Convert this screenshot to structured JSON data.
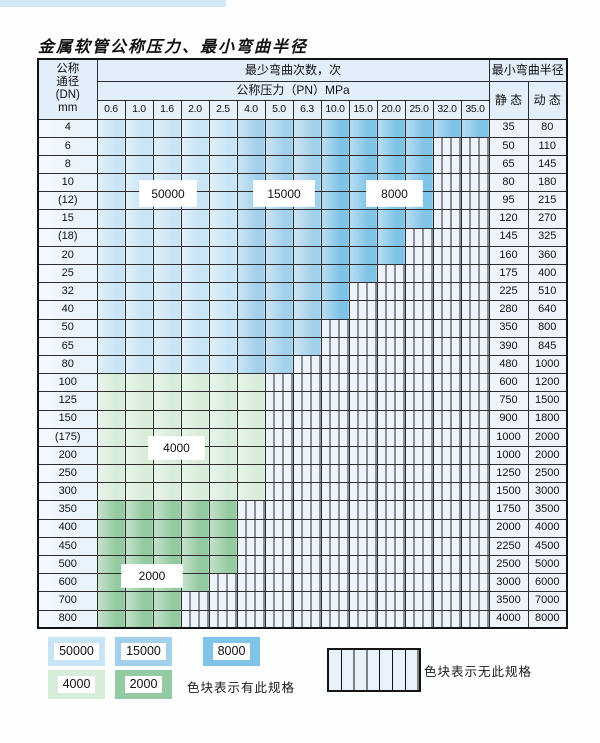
{
  "page": {
    "title": "金属软管公称压力、最小弯曲半径"
  },
  "table": {
    "header": {
      "dn_lines": [
        "公称",
        "通径",
        "(DN)",
        "mm"
      ],
      "bend_cycles": "最少弯曲次数，次",
      "pressure": "公称压力（PN）MPa",
      "min_bend_radius": "最小弯曲半径",
      "static": "静 态",
      "dynamic": "动 态",
      "pressures": [
        "0.6",
        "1.0",
        "1.6",
        "2.0",
        "2.5",
        "4.0",
        "5.0",
        "6.3",
        "10.0",
        "15.0",
        "20.0",
        "25.0",
        "32.0",
        "35.0"
      ]
    },
    "zones": {
      "blue_by_column": {
        "50000": [
          "0.6",
          "1.0",
          "1.6",
          "2.0",
          "2.5"
        ],
        "15000": [
          "4.0",
          "5.0",
          "6.3"
        ],
        "8000": [
          "10.0",
          "15.0",
          "20.0",
          "25.0",
          "32.0",
          "35.0"
        ]
      },
      "colors": {
        "50000": "#c9e4f4",
        "15000": "#a3d1ec",
        "8000": "#7fc3e7",
        "4000": "#d8ecda",
        "2000": "#94caa2"
      }
    },
    "rows": [
      {
        "dn": "4",
        "region": "blue",
        "colored_until": "35.0",
        "static": "35",
        "dynamic": "80"
      },
      {
        "dn": "6",
        "region": "blue",
        "colored_until": "25.0",
        "static": "50",
        "dynamic": "110"
      },
      {
        "dn": "8",
        "region": "blue",
        "colored_until": "25.0",
        "static": "65",
        "dynamic": "145"
      },
      {
        "dn": "10",
        "region": "blue",
        "colored_until": "25.0",
        "static": "80",
        "dynamic": "180"
      },
      {
        "dn": "(12)",
        "region": "blue",
        "colored_until": "25.0",
        "static": "95",
        "dynamic": "215"
      },
      {
        "dn": "15",
        "region": "blue",
        "colored_until": "25.0",
        "static": "120",
        "dynamic": "270"
      },
      {
        "dn": "(18)",
        "region": "blue",
        "colored_until": "20.0",
        "static": "145",
        "dynamic": "325"
      },
      {
        "dn": "20",
        "region": "blue",
        "colored_until": "20.0",
        "static": "160",
        "dynamic": "360"
      },
      {
        "dn": "25",
        "region": "blue",
        "colored_until": "15.0",
        "static": "175",
        "dynamic": "400"
      },
      {
        "dn": "32",
        "region": "blue",
        "colored_until": "10.0",
        "static": "225",
        "dynamic": "510"
      },
      {
        "dn": "40",
        "region": "blue",
        "colored_until": "10.0",
        "static": "280",
        "dynamic": "640"
      },
      {
        "dn": "50",
        "region": "blue",
        "colored_until": "6.3",
        "static": "350",
        "dynamic": "800"
      },
      {
        "dn": "65",
        "region": "blue",
        "colored_until": "6.3",
        "static": "390",
        "dynamic": "845"
      },
      {
        "dn": "80",
        "region": "blue",
        "colored_until": "5.0",
        "static": "480",
        "dynamic": "1000"
      },
      {
        "dn": "100",
        "region": "4000",
        "colored_until": "4.0",
        "static": "600",
        "dynamic": "1200"
      },
      {
        "dn": "125",
        "region": "4000",
        "colored_until": "4.0",
        "static": "750",
        "dynamic": "1500"
      },
      {
        "dn": "150",
        "region": "4000",
        "colored_until": "4.0",
        "static": "900",
        "dynamic": "1800"
      },
      {
        "dn": "(175)",
        "region": "4000",
        "colored_until": "4.0",
        "static": "1000",
        "dynamic": "2000"
      },
      {
        "dn": "200",
        "region": "4000",
        "colored_until": "4.0",
        "static": "1000",
        "dynamic": "2000"
      },
      {
        "dn": "250",
        "region": "4000",
        "colored_until": "4.0",
        "static": "1250",
        "dynamic": "2500"
      },
      {
        "dn": "300",
        "region": "4000",
        "colored_until": "4.0",
        "static": "1500",
        "dynamic": "3000"
      },
      {
        "dn": "350",
        "region": "2000",
        "colored_until": "2.5",
        "static": "1750",
        "dynamic": "3500"
      },
      {
        "dn": "400",
        "region": "2000",
        "colored_until": "2.5",
        "static": "2000",
        "dynamic": "4000"
      },
      {
        "dn": "450",
        "region": "2000",
        "colored_until": "2.5",
        "static": "2250",
        "dynamic": "4500"
      },
      {
        "dn": "500",
        "region": "2000",
        "colored_until": "2.5",
        "static": "2500",
        "dynamic": "5000"
      },
      {
        "dn": "600",
        "region": "2000",
        "colored_until": "2.0",
        "static": "3000",
        "dynamic": "6000"
      },
      {
        "dn": "700",
        "region": "2000",
        "colored_until": "1.6",
        "static": "3500",
        "dynamic": "7000"
      },
      {
        "dn": "800",
        "region": "2000",
        "colored_until": "1.6",
        "static": "4000",
        "dynamic": "8000"
      }
    ],
    "cycle_labels": [
      {
        "value": "50000",
        "at_dn": "10",
        "at_pn": "1.6-2.0"
      },
      {
        "value": "15000",
        "at_dn": "10",
        "at_pn": "5.0-6.3"
      },
      {
        "value": "8000",
        "at_dn": "10",
        "at_pn": "15.0-20.0"
      },
      {
        "value": "4000",
        "at_dn": "200",
        "at_pn": "1.6-2.0"
      },
      {
        "value": "2000",
        "at_dn": "600",
        "at_pn": "1.0-2.0"
      }
    ]
  },
  "legend": {
    "has_spec": [
      {
        "value": "50000",
        "color": "#c9e4f4"
      },
      {
        "value": "15000",
        "color": "#a3d1ec"
      },
      {
        "value": "8000",
        "color": "#7fc3e7"
      },
      {
        "value": "4000",
        "color": "#d8ecda"
      },
      {
        "value": "2000",
        "color": "#94caa2"
      }
    ],
    "has_spec_note": "色块表示有此规格",
    "no_spec_note": "色块表示无此规格"
  }
}
